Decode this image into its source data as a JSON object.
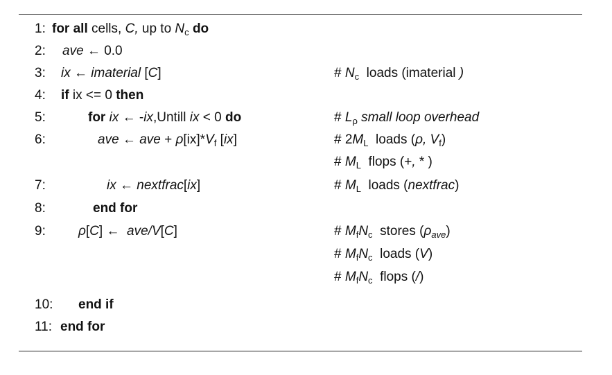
{
  "lines": [
    {
      "num": "1:",
      "code": "for all cells, C, up to Nc do"
    },
    {
      "num": "2:",
      "code": "ave ← 0.0"
    },
    {
      "num": "3:",
      "code": "ix ← imaterial [C]",
      "comment": "# Nc loads (imaterial )"
    },
    {
      "num": "4:",
      "code": "if ix <= 0 then"
    },
    {
      "num": "5:",
      "code": "for ix ← -ix,Untill ix < 0 do",
      "comment": "# Lρ small loop overhead"
    },
    {
      "num": "6:",
      "code": "ave ← ave + ρ[ix]*Vf [ix]",
      "comment": "# 2ML loads (ρ, Vf)",
      "comment2": "# ML flops (+,*)"
    },
    {
      "num": "7:",
      "code": "ix ← nextfrac[ix]",
      "comment": "# ML loads (nextfrac)"
    },
    {
      "num": "8:",
      "code": "end for"
    },
    {
      "num": "9:",
      "code": "ρ[C] ← ave/V[C]",
      "comment": "# MfNc stores (ρave)",
      "comment2": "# MfNc loads (V)",
      "comment3": "# MfNc flops (/)"
    },
    {
      "num": "10:",
      "code": "end if"
    },
    {
      "num": "11:",
      "code": "end for"
    }
  ]
}
